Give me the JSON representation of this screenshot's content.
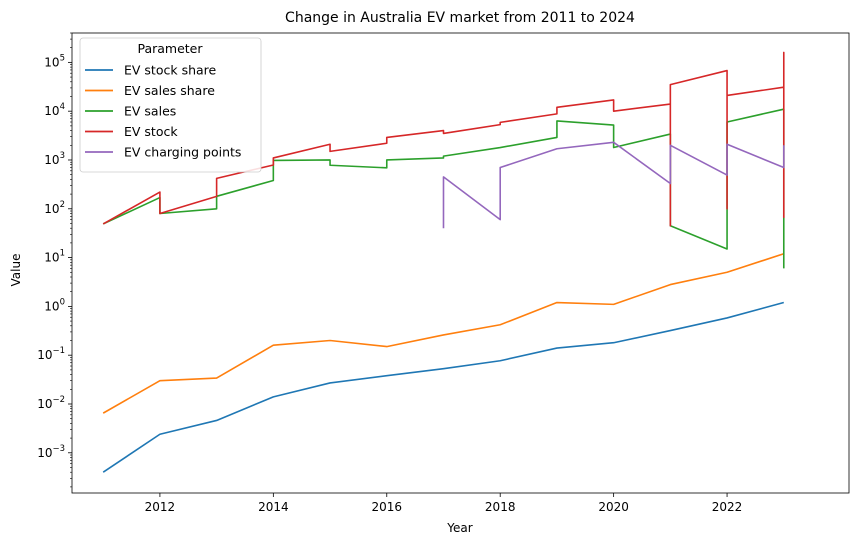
{
  "chart_data": {
    "type": "line",
    "title": "Change in Australia EV market from 2011 to 2024",
    "xlabel": "Year",
    "ylabel": "Value",
    "xlim": [
      2010.45,
      2024.15
    ],
    "ylim": [
      0.00015,
      400000
    ],
    "yscale": "log",
    "grid": false,
    "legend_title": "Parameter",
    "legend_position": "top-left",
    "x_ticks": [
      2012,
      2014,
      2016,
      2018,
      2020,
      2022
    ],
    "x_tick_labels": [
      "2012",
      "2014",
      "2016",
      "2018",
      "2020",
      "2022"
    ],
    "y_ticks": [
      {
        "value": 0.001,
        "base": "10",
        "exp": "−3"
      },
      {
        "value": 0.01,
        "base": "10",
        "exp": "−2"
      },
      {
        "value": 0.1,
        "base": "10",
        "exp": "−1"
      },
      {
        "value": 1,
        "base": "10",
        "exp": "0"
      },
      {
        "value": 10,
        "base": "10",
        "exp": "1"
      },
      {
        "value": 100,
        "base": "10",
        "exp": "2"
      },
      {
        "value": 1000,
        "base": "10",
        "exp": "3"
      },
      {
        "value": 10000,
        "base": "10",
        "exp": "4"
      },
      {
        "value": 100000,
        "base": "10",
        "exp": "5"
      }
    ],
    "series": [
      {
        "name": "EV stock share",
        "color": "#1f77b4",
        "points": [
          [
            2011,
            0.0004
          ],
          [
            2012,
            0.0024
          ],
          [
            2013,
            0.0046
          ],
          [
            2014,
            0.014
          ],
          [
            2015,
            0.027
          ],
          [
            2016,
            0.038
          ],
          [
            2017,
            0.053
          ],
          [
            2018,
            0.077
          ],
          [
            2019,
            0.14
          ],
          [
            2020,
            0.18
          ],
          [
            2021,
            0.32
          ],
          [
            2022,
            0.58
          ],
          [
            2023,
            1.2
          ]
        ]
      },
      {
        "name": "EV sales share",
        "color": "#ff7f0e",
        "points": [
          [
            2011,
            0.0065
          ],
          [
            2012,
            0.03
          ],
          [
            2013,
            0.034
          ],
          [
            2014,
            0.16
          ],
          [
            2015,
            0.2
          ],
          [
            2016,
            0.15
          ],
          [
            2017,
            0.26
          ],
          [
            2018,
            0.42
          ],
          [
            2019,
            1.2
          ],
          [
            2020,
            1.1
          ],
          [
            2021,
            2.8
          ],
          [
            2022,
            5
          ],
          [
            2023,
            12
          ]
        ]
      },
      {
        "name": "EV sales",
        "color": "#2ca02c",
        "points": [
          [
            2011,
            49
          ],
          [
            2012,
            170
          ],
          [
            2012,
            80
          ],
          [
            2013,
            100
          ],
          [
            2013,
            180
          ],
          [
            2014,
            380
          ],
          [
            2014,
            980
          ],
          [
            2015,
            1000
          ],
          [
            2015,
            780
          ],
          [
            2016,
            690
          ],
          [
            2016,
            1000
          ],
          [
            2017,
            1100
          ],
          [
            2017,
            1200
          ],
          [
            2018,
            1800
          ],
          [
            2019,
            2900
          ],
          [
            2019,
            6300
          ],
          [
            2020,
            5200
          ],
          [
            2020,
            1800
          ],
          [
            2021,
            3400
          ],
          [
            2021,
            45
          ],
          [
            2022,
            15
          ],
          [
            2022,
            100
          ],
          [
            2022,
            6000
          ],
          [
            2023,
            11000
          ],
          [
            2023,
            6
          ]
        ]
      },
      {
        "name": "EV stock",
        "color": "#d62728",
        "points": [
          [
            2011,
            49
          ],
          [
            2012,
            220
          ],
          [
            2012,
            80
          ],
          [
            2013,
            180
          ],
          [
            2013,
            420
          ],
          [
            2014,
            790
          ],
          [
            2014,
            1100
          ],
          [
            2015,
            2100
          ],
          [
            2015,
            1500
          ],
          [
            2016,
            2200
          ],
          [
            2016,
            2900
          ],
          [
            2017,
            4000
          ],
          [
            2017,
            3500
          ],
          [
            2018,
            5300
          ],
          [
            2018,
            5900
          ],
          [
            2019,
            8800
          ],
          [
            2019,
            12000
          ],
          [
            2020,
            17000
          ],
          [
            2020,
            10000
          ],
          [
            2021,
            14000
          ],
          [
            2021,
            45
          ],
          [
            2021,
            35000
          ],
          [
            2022,
            68000
          ],
          [
            2022,
            100
          ],
          [
            2022,
            21000
          ],
          [
            2023,
            31000
          ],
          [
            2023,
            160000
          ],
          [
            2023,
            65
          ]
        ]
      },
      {
        "name": "EV charging points",
        "color": "#9467bd",
        "points": [
          [
            2017,
            40
          ],
          [
            2017,
            450
          ],
          [
            2018,
            60
          ],
          [
            2018,
            700
          ],
          [
            2019,
            1700
          ],
          [
            2020,
            2300
          ],
          [
            2021,
            330
          ],
          [
            2021,
            2000
          ],
          [
            2022,
            490
          ],
          [
            2022,
            2100
          ],
          [
            2023,
            700
          ],
          [
            2023,
            2000
          ]
        ]
      }
    ]
  }
}
